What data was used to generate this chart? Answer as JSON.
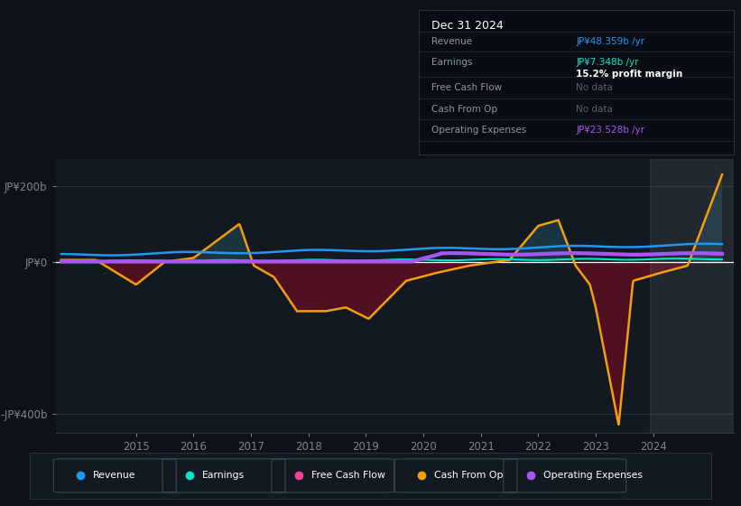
{
  "bg_color": "#0e1117",
  "chart_bg": "#0e1117",
  "panel_bg": "#131920",
  "ylabel_top": "JP¥200b",
  "ylabel_zero": "JP¥0",
  "ylabel_bottom": "-JP¥400b",
  "ylim": [
    -450,
    270
  ],
  "xlim": [
    2013.6,
    2025.4
  ],
  "x_ticks": [
    2015,
    2016,
    2017,
    2018,
    2019,
    2020,
    2021,
    2022,
    2023,
    2024
  ],
  "revenue_color": "#2196f3",
  "earnings_color": "#00e5cc",
  "cashfromop_color": "#f59e0b",
  "opex_color": "#a855f7",
  "freecashflow_color": "#ec4899",
  "info_title": "Dec 31 2024",
  "info_rows": [
    {
      "label": "Revenue",
      "value": "JP¥48.359b /yr",
      "value_color": "#2196f3",
      "sub": null
    },
    {
      "label": "Earnings",
      "value": "JP¥7.348b /yr",
      "value_color": "#00e5cc",
      "sub": "15.2% profit margin"
    },
    {
      "label": "Free Cash Flow",
      "value": "No data",
      "value_color": "#555e6b",
      "sub": null
    },
    {
      "label": "Cash From Op",
      "value": "No data",
      "value_color": "#555e6b",
      "sub": null
    },
    {
      "label": "Operating Expenses",
      "value": "JP¥23.528b /yr",
      "value_color": "#a855f7",
      "sub": null
    }
  ],
  "legend": [
    {
      "label": "Revenue",
      "color": "#2196f3"
    },
    {
      "label": "Earnings",
      "color": "#00e5cc"
    },
    {
      "label": "Free Cash Flow",
      "color": "#ec4899"
    },
    {
      "label": "Cash From Op",
      "color": "#f59e0b"
    },
    {
      "label": "Operating Expenses",
      "color": "#a855f7"
    }
  ]
}
